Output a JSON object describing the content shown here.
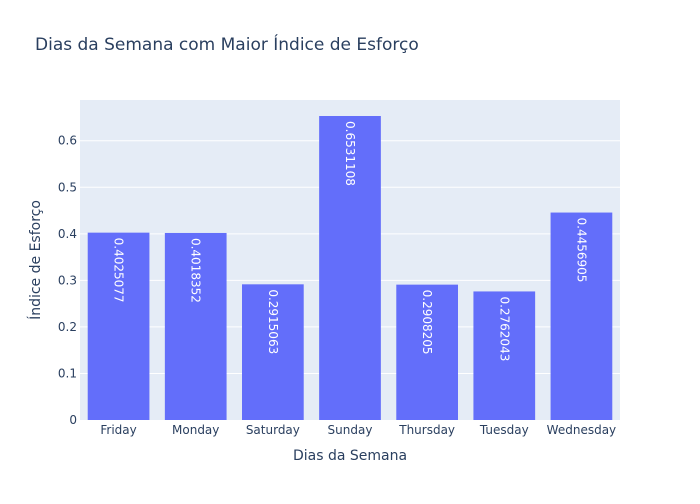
{
  "chart_data": {
    "type": "bar",
    "title": "Dias da Semana com Maior Índice de Esforço",
    "xlabel": "Dias da Semana",
    "ylabel": "Índice de Esforço",
    "categories": [
      "Friday",
      "Monday",
      "Saturday",
      "Sunday",
      "Thursday",
      "Tuesday",
      "Wednesday"
    ],
    "values": [
      0.4025077,
      0.4018352,
      0.2915063,
      0.6531108,
      0.2908205,
      0.2762043,
      0.4456905
    ],
    "value_labels": [
      "0.4025077",
      "0.4018352",
      "0.2915063",
      "0.6531108",
      "0.2908205",
      "0.2762043",
      "0.4456905"
    ],
    "yticks": [
      "0",
      "0.1",
      "0.2",
      "0.3",
      "0.4",
      "0.5",
      "0.6"
    ],
    "ylim": [
      0,
      0.6875
    ],
    "grid": true,
    "legend": "none",
    "colors": {
      "bar": "#636efa",
      "plot_bg": "#e5ecf6",
      "grid": "#ffffff",
      "text": "#2a3f5f",
      "value_label": "#ffffff"
    }
  }
}
